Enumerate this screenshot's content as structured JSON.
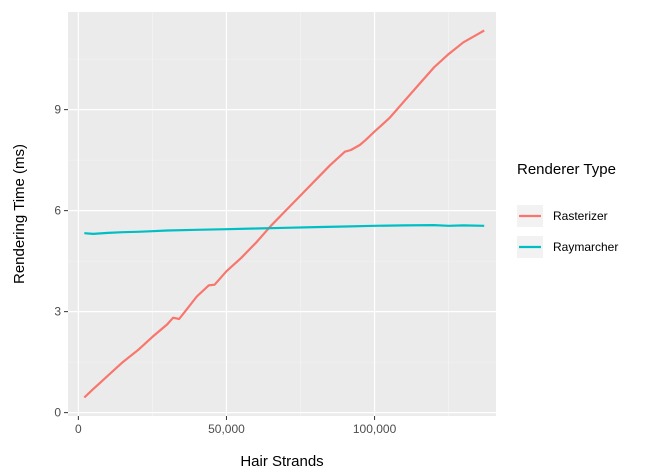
{
  "chart_data": {
    "type": "line",
    "title": "",
    "xlabel": "Hair Strands",
    "ylabel": "Rendering Time (ms)",
    "xlim": [
      -3500,
      141000
    ],
    "ylim": [
      -0.1,
      11.9
    ],
    "x_ticks": [
      0,
      50000,
      100000
    ],
    "x_tick_labels": [
      "0",
      "50,000",
      "100,000"
    ],
    "y_ticks": [
      0,
      3,
      6,
      9
    ],
    "y_tick_labels": [
      "0",
      "3",
      "6",
      "9"
    ],
    "grid": true,
    "legend_position": "right",
    "legend_title": "Renderer Type",
    "series": [
      {
        "name": "Rasterizer",
        "color": "#f8766d",
        "x": [
          2000,
          5000,
          10000,
          15000,
          20000,
          25000,
          30000,
          32000,
          34000,
          36000,
          40000,
          44000,
          46000,
          50000,
          55000,
          60000,
          65000,
          70000,
          75000,
          80000,
          85000,
          90000,
          92000,
          95000,
          97000,
          100000,
          105000,
          110000,
          115000,
          120000,
          125000,
          130000,
          135000,
          137000
        ],
        "values": [
          0.45,
          0.7,
          1.1,
          1.5,
          1.85,
          2.25,
          2.62,
          2.82,
          2.78,
          3.0,
          3.45,
          3.78,
          3.8,
          4.2,
          4.6,
          5.05,
          5.55,
          6.0,
          6.45,
          6.9,
          7.35,
          7.75,
          7.8,
          7.95,
          8.1,
          8.35,
          8.75,
          9.25,
          9.75,
          10.25,
          10.65,
          11.0,
          11.25,
          11.35
        ]
      },
      {
        "name": "Raymarcher",
        "color": "#00bfc4",
        "x": [
          2000,
          5000,
          10000,
          15000,
          20000,
          25000,
          30000,
          40000,
          50000,
          60000,
          70000,
          80000,
          90000,
          100000,
          110000,
          120000,
          125000,
          130000,
          137000
        ],
        "values": [
          5.33,
          5.31,
          5.34,
          5.36,
          5.37,
          5.39,
          5.41,
          5.43,
          5.45,
          5.47,
          5.49,
          5.51,
          5.53,
          5.55,
          5.56,
          5.57,
          5.55,
          5.56,
          5.55
        ]
      }
    ]
  }
}
